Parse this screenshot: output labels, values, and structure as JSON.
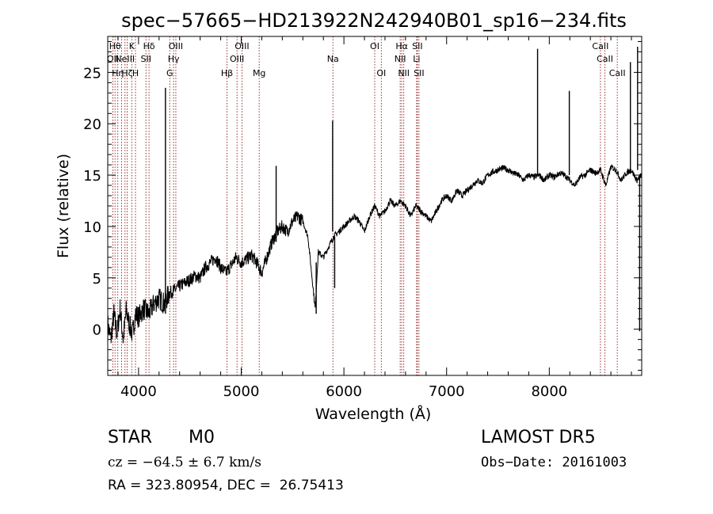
{
  "chart_data": {
    "type": "line",
    "title": "spec−57665−HD213922N242940B01_sp16−234.fits",
    "xlabel": "Wavelength (Å)",
    "ylabel": "Flux (relative)",
    "xlim": [
      3700,
      8900
    ],
    "ylim": [
      -4.5,
      28.5
    ],
    "xticks": [
      4000,
      5000,
      6000,
      7000,
      8000
    ],
    "xtick_labels": [
      "4000",
      "5000",
      "6000",
      "7000",
      "8000"
    ],
    "yticks": [
      0,
      5,
      10,
      15,
      20,
      25
    ],
    "ytick_labels": [
      "0",
      "5",
      "10",
      "15",
      "20",
      "25"
    ],
    "grid": false,
    "line_color": "#000000",
    "marker_color": "#8b1a1a",
    "spectrum": {
      "x": [
        3700,
        3730,
        3760,
        3790,
        3820,
        3850,
        3880,
        3910,
        3940,
        3970,
        4000,
        4050,
        4100,
        4150,
        4200,
        4250,
        4300,
        4350,
        4400,
        4450,
        4500,
        4550,
        4600,
        4650,
        4700,
        4750,
        4800,
        4850,
        4900,
        4950,
        5000,
        5050,
        5100,
        5150,
        5200,
        5250,
        5300,
        5350,
        5400,
        5450,
        5500,
        5550,
        5600,
        5650,
        5700,
        5720,
        5750,
        5800,
        5850,
        5900,
        5950,
        6000,
        6050,
        6100,
        6150,
        6200,
        6250,
        6300,
        6350,
        6400,
        6450,
        6500,
        6550,
        6600,
        6650,
        6700,
        6750,
        6800,
        6850,
        6900,
        6950,
        7000,
        7050,
        7100,
        7150,
        7200,
        7250,
        7300,
        7350,
        7400,
        7450,
        7500,
        7550,
        7600,
        7650,
        7700,
        7750,
        7800,
        7850,
        7900,
        7950,
        8000,
        8050,
        8100,
        8150,
        8200,
        8250,
        8300,
        8350,
        8400,
        8450,
        8500,
        8550,
        8600,
        8650,
        8700,
        8750,
        8800,
        8850,
        8900
      ],
      "y": [
        0.5,
        -1,
        1.5,
        -0.5,
        2,
        -1,
        1.8,
        0.5,
        -0.5,
        1.5,
        1.2,
        2,
        1.5,
        2.5,
        3,
        2.5,
        3.5,
        3.8,
        4.2,
        4.5,
        4.8,
        5.2,
        5,
        6,
        6.5,
        7,
        6,
        5.5,
        6.2,
        7,
        6.5,
        6.8,
        7.2,
        6.5,
        5.5,
        7,
        8.5,
        9.5,
        10,
        9.5,
        10.5,
        11,
        10.5,
        9,
        4,
        2,
        7.5,
        7,
        8,
        9,
        9.5,
        10,
        10.5,
        11,
        10.5,
        9.5,
        11,
        12,
        11,
        11.5,
        12.5,
        12,
        12.5,
        12,
        11,
        12,
        11.5,
        11,
        10.5,
        11.5,
        12.5,
        13,
        12.5,
        13.5,
        13,
        13.5,
        14,
        14.5,
        14.2,
        15,
        15.3,
        15.5,
        15.7,
        15.5,
        15.2,
        15,
        14.5,
        15,
        14.8,
        15,
        14.5,
        15,
        14.8,
        15.2,
        15,
        14.5,
        14,
        14.8,
        15,
        15.5,
        15.2,
        15.5,
        14,
        15.8,
        15.5,
        14.5,
        15.2,
        15.5,
        14.5,
        15
      ]
    },
    "emission_spikes": [
      {
        "x": 4262,
        "base": 1.5,
        "peak": 23.5
      },
      {
        "x": 5340,
        "base": 8.5,
        "peak": 15.9
      },
      {
        "x": 5890,
        "base": 9.5,
        "peak": 20.3
      },
      {
        "x": 7886,
        "base": 15.0,
        "peak": 27.3
      },
      {
        "x": 8195,
        "base": 15.0,
        "peak": 23.2
      },
      {
        "x": 8790,
        "base": 15.5,
        "peak": 26.0
      },
      {
        "x": 8860,
        "base": 15.5,
        "peak": 27.5
      }
    ],
    "absorption_dips": [
      {
        "x": 5730,
        "base": 6.5,
        "depth": 1.5
      },
      {
        "x": 5910,
        "base": 9.0,
        "depth": 4.0
      },
      {
        "x": 8880,
        "base": 15.0,
        "depth": -0.2
      }
    ],
    "line_markers": [
      {
        "x": 3750,
        "label": "OII",
        "row": 2
      },
      {
        "x": 3771,
        "label": "Hθ",
        "row": 1
      },
      {
        "x": 3798,
        "label": "Hη",
        "row": 3
      },
      {
        "x": 3835,
        "label": "",
        "row": 0
      },
      {
        "x": 3868,
        "label": "NeIII",
        "row": 2
      },
      {
        "x": 3889,
        "label": "Hζ",
        "row": 3
      },
      {
        "x": 3934,
        "label": "K",
        "row": 1
      },
      {
        "x": 3970,
        "label": "H",
        "row": 3
      },
      {
        "x": 4072,
        "label": "SII",
        "row": 2
      },
      {
        "x": 4102,
        "label": "Hδ",
        "row": 1
      },
      {
        "x": 4304,
        "label": "G",
        "row": 3
      },
      {
        "x": 4341,
        "label": "Hγ",
        "row": 2
      },
      {
        "x": 4363,
        "label": "OIII",
        "row": 1
      },
      {
        "x": 4861,
        "label": "Hβ",
        "row": 3
      },
      {
        "x": 4959,
        "label": "OIII",
        "row": 2
      },
      {
        "x": 5007,
        "label": "OIII",
        "row": 1
      },
      {
        "x": 5175,
        "label": "Mg",
        "row": 3
      },
      {
        "x": 5893,
        "label": "Na",
        "row": 2
      },
      {
        "x": 6300,
        "label": "OI",
        "row": 1
      },
      {
        "x": 6364,
        "label": "OI",
        "row": 3
      },
      {
        "x": 6548,
        "label": "NII",
        "row": 2
      },
      {
        "x": 6563,
        "label": "Hα",
        "row": 1
      },
      {
        "x": 6583,
        "label": "NII",
        "row": 3
      },
      {
        "x": 6708,
        "label": "Li",
        "row": 2
      },
      {
        "x": 6716,
        "label": "SII",
        "row": 1
      },
      {
        "x": 6731,
        "label": "SII",
        "row": 3
      },
      {
        "x": 8498,
        "label": "CaII",
        "row": 1
      },
      {
        "x": 8542,
        "label": "CaII",
        "row": 2
      },
      {
        "x": 8662,
        "label": "CaII",
        "row": 3
      }
    ]
  },
  "footer": {
    "object_class": "STAR",
    "subclass": "M0",
    "survey": "LAMOST DR5",
    "cz_text": "cz = −64.5 ± 6.7 km/s",
    "obs_date": "Obs−Date: 20161003",
    "coords": "RA = 323.80954, DEC =  26.75413"
  }
}
